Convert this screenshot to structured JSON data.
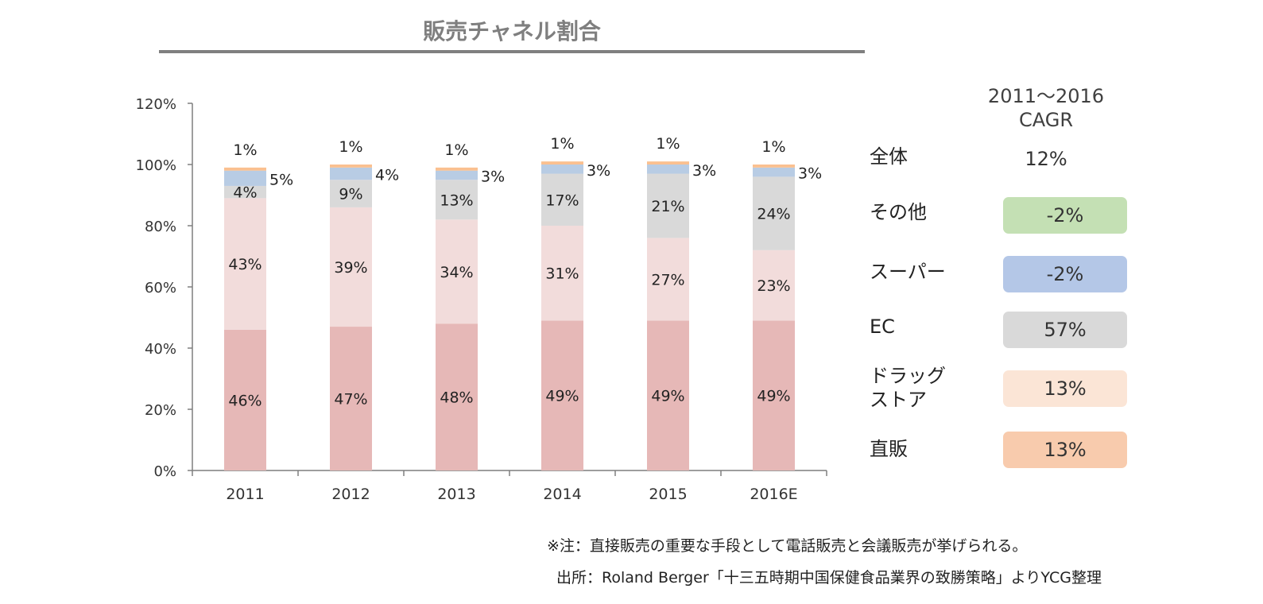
{
  "title": "販売チャネル割合",
  "chart_data": {
    "type": "bar",
    "stacked": true,
    "categories": [
      "2011",
      "2012",
      "2013",
      "2014",
      "2015",
      "2016E"
    ],
    "ylim": [
      0,
      120
    ],
    "yticks": [
      "0%",
      "20%",
      "40%",
      "60%",
      "80%",
      "100%",
      "120%"
    ],
    "series": [
      {
        "name": "直販",
        "color": "#e6b8b7",
        "values": [
          46,
          47,
          48,
          49,
          49,
          49
        ],
        "labels": [
          "46%",
          "47%",
          "48%",
          "49%",
          "49%",
          "49%"
        ]
      },
      {
        "name": "ドラッグストア",
        "color": "#f2dcdb",
        "values": [
          43,
          39,
          34,
          31,
          27,
          23
        ],
        "labels": [
          "43%",
          "39%",
          "34%",
          "31%",
          "27%",
          "23%"
        ]
      },
      {
        "name": "EC",
        "color": "#d9d9d9",
        "values": [
          4,
          9,
          13,
          17,
          21,
          24
        ],
        "labels": [
          "4%",
          "9%",
          "13%",
          "17%",
          "21%",
          "24%"
        ]
      },
      {
        "name": "スーパー",
        "color": "#b8cce4",
        "values": [
          5,
          4,
          3,
          3,
          3,
          3
        ],
        "labels": [
          "5%",
          "4%",
          "3%",
          "3%",
          "3%",
          "3%"
        ]
      },
      {
        "name": "その他",
        "color": "#fac090",
        "values": [
          1,
          1,
          1,
          1,
          1,
          1
        ],
        "labels": [
          "1%",
          "1%",
          "1%",
          "1%",
          "1%",
          "1%"
        ]
      }
    ]
  },
  "cagr": {
    "header_line1": "2011〜2016",
    "header_line2": "CAGR",
    "rows": [
      {
        "label": "全体",
        "value": "12%"
      },
      {
        "label": "その他",
        "value": "-2%",
        "color": "#c4e0b4"
      },
      {
        "label": "スーパー",
        "value": "-2%",
        "color": "#b4c7e7"
      },
      {
        "label": "EC",
        "value": "57%",
        "color": "#d9d9d9"
      },
      {
        "label_line1": "ドラッグ",
        "label_line2": "ストア",
        "value": "13%",
        "color": "#fbe5d6"
      },
      {
        "label": "直販",
        "value": "13%",
        "color": "#f8cbad"
      }
    ]
  },
  "note": "※注：直接販売の重要な手段として電話販売と会議販売が挙げられる。",
  "source": "出所：Roland Berger「十三五時期中国保健食品業界の致勝策略」よりYCG整理"
}
